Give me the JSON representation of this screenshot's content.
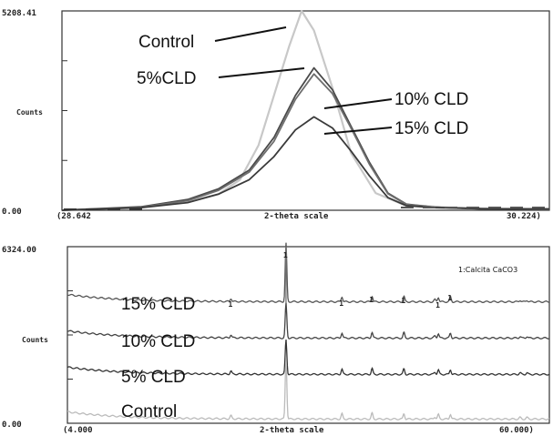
{
  "chart_data": [
    {
      "type": "line",
      "title": "",
      "ylabel": "Counts",
      "xlabel": "2-theta scale",
      "xlim": [
        28.642,
        30.224
      ],
      "ylim": [
        0,
        5208.41
      ],
      "x_tick_labels": [
        "(28.642",
        "30.224)"
      ],
      "y_tick_labels": [
        "0.00",
        "5208.41"
      ],
      "series": [
        {
          "name": "Control",
          "color": "#c8c8c8",
          "x": [
            28.642,
            28.9,
            29.05,
            29.15,
            29.22,
            29.28,
            29.33,
            29.38,
            29.42,
            29.46,
            29.52,
            29.58,
            29.66,
            29.75,
            29.9,
            30.05,
            30.224
          ],
          "y": [
            0,
            90,
            220,
            420,
            800,
            1700,
            3000,
            4300,
            5208,
            4700,
            3200,
            1500,
            450,
            150,
            70,
            40,
            30
          ]
        },
        {
          "name": "5%CLD",
          "color": "#4a4a4a",
          "x": [
            28.642,
            28.9,
            29.05,
            29.15,
            29.25,
            29.33,
            29.4,
            29.46,
            29.52,
            29.58,
            29.64,
            29.7,
            29.76,
            29.85,
            30.0,
            30.224
          ],
          "y": [
            0,
            90,
            280,
            560,
            1050,
            1900,
            3000,
            3720,
            3150,
            2200,
            1250,
            450,
            160,
            80,
            40,
            30
          ]
        },
        {
          "name": "10% CLD",
          "color": "#6e6e6e",
          "x": [
            28.642,
            28.9,
            29.05,
            29.15,
            29.25,
            29.33,
            29.4,
            29.46,
            29.52,
            29.58,
            29.64,
            29.7,
            29.76,
            29.85,
            30.0,
            30.224
          ],
          "y": [
            0,
            80,
            250,
            520,
            1000,
            1800,
            2900,
            3560,
            3050,
            2150,
            1200,
            430,
            150,
            80,
            40,
            30
          ]
        },
        {
          "name": "15% CLD",
          "color": "#3a3a3a",
          "x": [
            28.642,
            28.9,
            29.05,
            29.15,
            29.25,
            29.33,
            29.4,
            29.46,
            29.52,
            29.58,
            29.64,
            29.7,
            29.76,
            29.85,
            30.0,
            30.224
          ],
          "y": [
            0,
            70,
            200,
            420,
            800,
            1400,
            2100,
            2440,
            2150,
            1550,
            900,
            330,
            120,
            70,
            40,
            30
          ]
        }
      ],
      "annotations": [
        "Control",
        "5%CLD",
        "10% CLD",
        "15% CLD"
      ]
    },
    {
      "type": "line",
      "title": "",
      "ylabel": "Counts",
      "xlabel": "2-theta scale",
      "xlim": [
        4.0,
        60.0
      ],
      "ylim": [
        0,
        6324.0
      ],
      "x_tick_labels": [
        "(4.000",
        "60.000)"
      ],
      "y_tick_labels": [
        "0.00",
        "6324.00"
      ],
      "phase_label": "1:Calcita CaCO3",
      "peak_marker": "1",
      "peaks_2theta": [
        23.0,
        29.4,
        35.9,
        39.4,
        43.1,
        47.1,
        48.5
      ],
      "series": [
        {
          "name": "15% CLD",
          "color": "#555555",
          "baseline": 4350
        },
        {
          "name": "10% CLD",
          "color": "#444444",
          "baseline": 3050
        },
        {
          "name": "5% CLD",
          "color": "#333333",
          "baseline": 1750
        },
        {
          "name": "Control",
          "color": "#bbbbbb",
          "baseline": 150
        }
      ]
    }
  ]
}
